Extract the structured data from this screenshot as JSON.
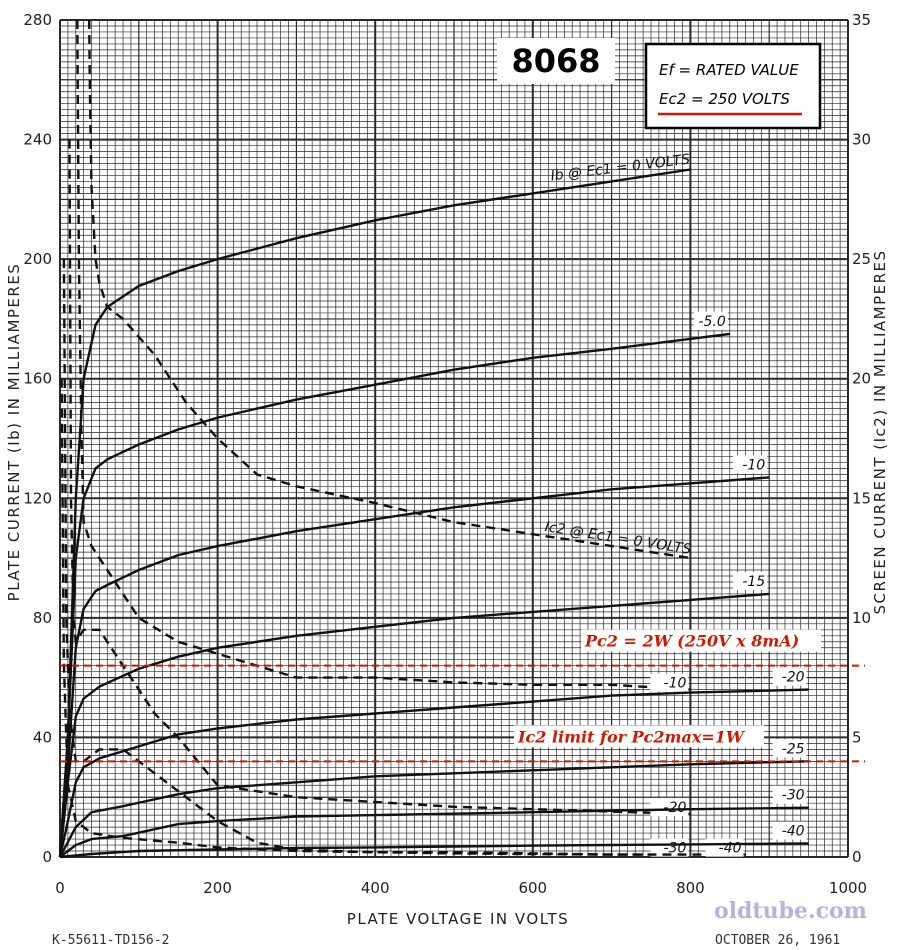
{
  "chart_data": {
    "type": "line",
    "title": "8068",
    "legend": [
      "Ef = RATED VALUE",
      "Ec2 = 250 VOLTS"
    ],
    "xlabel": "PLATE VOLTAGE IN VOLTS",
    "ylabel": "PLATE CURRENT (Ib) IN MILLIAMPERES",
    "y2label": "SCREEN CURRENT (Ic2) IN MILLIAMPERES",
    "xlim": [
      0,
      1000
    ],
    "ylim": [
      0,
      280
    ],
    "y2lim": [
      0,
      35
    ],
    "x_ticks": [
      "0",
      "200",
      "400",
      "600",
      "800",
      "1000"
    ],
    "y_ticks": [
      "0",
      "40",
      "80",
      "120",
      "160",
      "200",
      "240",
      "280"
    ],
    "y2_ticks": [
      "0",
      "5",
      "10",
      "15",
      "20",
      "25",
      "30",
      "35"
    ],
    "plate_series": [
      {
        "name": "Ib @ Ec1 = 0 VOLTS",
        "label": "Ib @ Ec1 = 0 VOLTS",
        "x": [
          0,
          10,
          20,
          30,
          45,
          60,
          100,
          150,
          200,
          300,
          400,
          500,
          600,
          700,
          800
        ],
        "y": [
          0,
          40,
          120,
          160,
          178,
          184,
          191,
          196,
          200,
          207,
          213,
          218,
          222,
          226,
          230
        ]
      },
      {
        "name": "-5.0",
        "label": "-5.0",
        "x": [
          0,
          10,
          20,
          30,
          45,
          60,
          100,
          150,
          200,
          300,
          400,
          500,
          600,
          700,
          850
        ],
        "y": [
          0,
          40,
          100,
          120,
          130,
          133,
          138,
          143,
          147,
          153,
          158,
          163,
          167,
          170,
          175
        ]
      },
      {
        "name": "-10",
        "label": "-10",
        "x": [
          0,
          10,
          20,
          30,
          45,
          60,
          100,
          150,
          200,
          300,
          400,
          500,
          600,
          700,
          900
        ],
        "y": [
          0,
          30,
          70,
          83,
          89,
          91,
          96,
          101,
          104,
          109,
          113,
          117,
          120,
          123,
          127
        ]
      },
      {
        "name": "-15",
        "label": "-15",
        "x": [
          0,
          10,
          20,
          30,
          50,
          100,
          150,
          200,
          300,
          400,
          500,
          600,
          700,
          800,
          900
        ],
        "y": [
          0,
          25,
          47,
          53,
          57,
          63,
          67,
          70,
          74,
          77,
          80,
          82,
          84,
          86,
          88
        ]
      },
      {
        "name": "-20",
        "label": "-20",
        "x": [
          0,
          10,
          20,
          30,
          50,
          100,
          150,
          200,
          300,
          400,
          500,
          600,
          700,
          800,
          950
        ],
        "y": [
          0,
          12,
          25,
          30,
          33,
          37,
          41,
          43,
          46,
          48,
          50,
          52,
          54,
          55,
          56
        ]
      },
      {
        "name": "-25",
        "label": "-25",
        "x": [
          0,
          10,
          20,
          40,
          80,
          150,
          200,
          300,
          400,
          500,
          600,
          700,
          800,
          950
        ],
        "y": [
          0,
          5,
          10,
          15,
          17,
          21,
          23,
          25,
          27,
          28,
          29,
          30,
          31,
          32
        ]
      },
      {
        "name": "-30",
        "label": "-30",
        "x": [
          0,
          20,
          40,
          80,
          150,
          200,
          300,
          400,
          500,
          600,
          700,
          800,
          950
        ],
        "y": [
          0,
          4,
          6,
          7,
          11,
          12,
          13.5,
          14,
          14.5,
          15,
          15.5,
          16,
          16.5
        ]
      },
      {
        "name": "-40",
        "label": "-40",
        "x": [
          0,
          40,
          100,
          200,
          300,
          400,
          500,
          600,
          700,
          800,
          950
        ],
        "y": [
          0,
          1,
          2,
          2.5,
          3,
          3.2,
          3.5,
          3.8,
          4,
          4.2,
          4.5
        ]
      }
    ],
    "screen_series": [
      {
        "name": "Ic2 @ Ec1 = 0 VOLTS",
        "label": "Ic2 @ Ec1 = 0 VOLTS",
        "x": [
          37,
          38,
          40,
          45,
          50,
          60,
          80,
          120,
          160,
          200,
          250,
          300,
          400,
          500,
          600,
          700,
          800
        ],
        "y": [
          35,
          32,
          28,
          25,
          24,
          23,
          22.5,
          21,
          19,
          17.5,
          16,
          15.5,
          14.8,
          14,
          13.5,
          13,
          12.5
        ]
      },
      {
        "name": "-10",
        "label": "-10",
        "x": [
          22,
          24,
          27,
          30,
          40,
          60,
          100,
          150,
          200,
          250,
          300,
          400,
          500,
          600,
          700,
          800
        ],
        "y": [
          35,
          25,
          18,
          14,
          13,
          12,
          10,
          9,
          8.5,
          8,
          7.5,
          7.5,
          7.3,
          7.2,
          7.2,
          7
        ]
      },
      {
        "name": "-20",
        "label": "-20",
        "x": [
          12,
          14,
          17,
          20,
          30,
          50,
          80,
          120,
          150,
          200,
          300,
          400,
          500,
          600,
          700,
          800
        ],
        "y": [
          30,
          15,
          10,
          9,
          9.5,
          9.5,
          8,
          6,
          5,
          3,
          2.5,
          2.3,
          2.1,
          2,
          1.9,
          1.8
        ]
      },
      {
        "name": "-30",
        "label": "-30",
        "x": [
          5,
          8,
          12,
          20,
          30,
          50,
          80,
          120,
          160,
          200,
          250,
          300,
          400,
          500,
          600,
          700,
          800
        ],
        "y": [
          25,
          10,
          6,
          4,
          4,
          4.5,
          4.5,
          3.5,
          2.5,
          1.5,
          0.6,
          0.3,
          0.2,
          0.2,
          0.15,
          0.1,
          0.1
        ]
      },
      {
        "name": "-40",
        "label": "-40",
        "x": [
          2,
          5,
          10,
          20,
          40,
          80,
          150,
          200,
          300,
          400,
          500,
          600,
          700,
          800,
          870
        ],
        "y": [
          20,
          8,
          3,
          1.5,
          1,
          0.8,
          0.6,
          0.4,
          0.25,
          0.2,
          0.15,
          0.12,
          0.1,
          0.1,
          0.1
        ]
      }
    ],
    "annotations": [
      {
        "text": "Pc2 = 2W (250V x 8mA)",
        "y2": 8
      },
      {
        "text": "Ic2 limit  for Pc2max=1W",
        "y2": 4
      }
    ],
    "footer_left": "K-55611-TD156-2",
    "footer_right": "OCTOBER 26, 1961",
    "watermark": "oldtube.com",
    "colors": {
      "curve": "#111111",
      "grid": "#2a2a2a",
      "annotation": "#cc1a00"
    }
  }
}
